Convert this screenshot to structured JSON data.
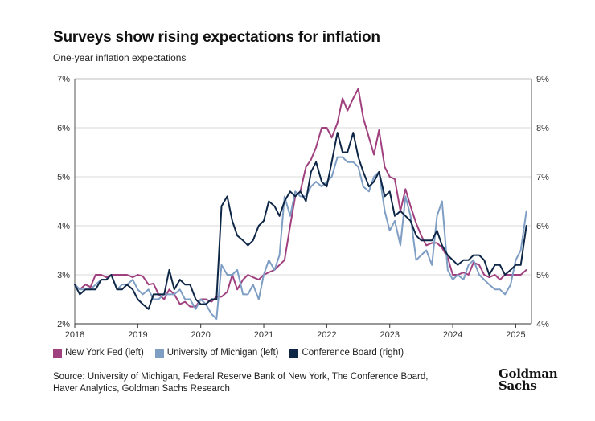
{
  "header": {
    "title": "Surveys show rising expectations for inflation",
    "subtitle": "One-year inflation expectations"
  },
  "legend": [
    {
      "label": "New York Fed (left)",
      "color": "#a0417f"
    },
    {
      "label": "University of Michigan (left)",
      "color": "#7f9ec4"
    },
    {
      "label": "Conference Board (right)",
      "color": "#0f2747"
    }
  ],
  "footer": {
    "source_line1": "Source: University of Michigan, Federal Reserve Bank of New York, The Conference Board,",
    "source_line2": "Haver Analytics, Goldman Sachs Research",
    "logo_line1": "Goldman",
    "logo_line2": "Sachs"
  },
  "chart_data": {
    "type": "line",
    "title": "Surveys show rising expectations for inflation",
    "subtitle": "One-year inflation expectations",
    "xlabel": "",
    "ylabel_left": "",
    "ylabel_right": "",
    "x_range": [
      2018.0,
      2025.25
    ],
    "x_ticks": [
      "2018",
      "2019",
      "2020",
      "2021",
      "2022",
      "2023",
      "2024",
      "2025"
    ],
    "ylim_left": [
      2,
      7
    ],
    "ylim_right": [
      4,
      9
    ],
    "y_ticks_left": [
      "2%",
      "3%",
      "4%",
      "5%",
      "6%",
      "7%"
    ],
    "y_ticks_right": [
      "4%",
      "5%",
      "6%",
      "7%",
      "8%",
      "9%"
    ],
    "grid": true,
    "series": [
      {
        "name": "New York Fed (left)",
        "axis": "left",
        "color": "#a0417f",
        "points": [
          [
            2018.0,
            2.8
          ],
          [
            2018.08,
            2.7
          ],
          [
            2018.17,
            2.8
          ],
          [
            2018.25,
            2.75
          ],
          [
            2018.33,
            3.0
          ],
          [
            2018.42,
            3.0
          ],
          [
            2018.5,
            2.95
          ],
          [
            2018.58,
            3.0
          ],
          [
            2018.67,
            3.0
          ],
          [
            2018.75,
            3.0
          ],
          [
            2018.83,
            3.0
          ],
          [
            2018.92,
            2.95
          ],
          [
            2019.0,
            3.0
          ],
          [
            2019.08,
            2.97
          ],
          [
            2019.17,
            2.8
          ],
          [
            2019.25,
            2.82
          ],
          [
            2019.33,
            2.6
          ],
          [
            2019.42,
            2.5
          ],
          [
            2019.5,
            2.7
          ],
          [
            2019.58,
            2.6
          ],
          [
            2019.67,
            2.4
          ],
          [
            2019.75,
            2.45
          ],
          [
            2019.83,
            2.35
          ],
          [
            2019.92,
            2.35
          ],
          [
            2020.0,
            2.5
          ],
          [
            2020.08,
            2.5
          ],
          [
            2020.17,
            2.45
          ],
          [
            2020.25,
            2.55
          ],
          [
            2020.33,
            2.55
          ],
          [
            2020.42,
            2.65
          ],
          [
            2020.5,
            3.0
          ],
          [
            2020.58,
            2.7
          ],
          [
            2020.67,
            2.9
          ],
          [
            2020.75,
            3.0
          ],
          [
            2020.83,
            2.95
          ],
          [
            2020.92,
            2.9
          ],
          [
            2021.0,
            3.0
          ],
          [
            2021.08,
            3.05
          ],
          [
            2021.17,
            3.1
          ],
          [
            2021.25,
            3.2
          ],
          [
            2021.33,
            3.3
          ],
          [
            2021.42,
            4.0
          ],
          [
            2021.5,
            4.6
          ],
          [
            2021.58,
            4.7
          ],
          [
            2021.67,
            5.2
          ],
          [
            2021.75,
            5.35
          ],
          [
            2021.83,
            5.6
          ],
          [
            2021.92,
            6.0
          ],
          [
            2022.0,
            6.0
          ],
          [
            2022.08,
            5.8
          ],
          [
            2022.17,
            6.1
          ],
          [
            2022.25,
            6.6
          ],
          [
            2022.33,
            6.35
          ],
          [
            2022.42,
            6.6
          ],
          [
            2022.5,
            6.8
          ],
          [
            2022.58,
            6.2
          ],
          [
            2022.67,
            5.8
          ],
          [
            2022.75,
            5.45
          ],
          [
            2022.83,
            5.95
          ],
          [
            2022.92,
            5.2
          ],
          [
            2023.0,
            5.0
          ],
          [
            2023.08,
            4.95
          ],
          [
            2023.17,
            4.3
          ],
          [
            2023.25,
            4.75
          ],
          [
            2023.33,
            4.4
          ],
          [
            2023.42,
            4.05
          ],
          [
            2023.5,
            3.8
          ],
          [
            2023.58,
            3.6
          ],
          [
            2023.67,
            3.65
          ],
          [
            2023.75,
            3.65
          ],
          [
            2023.83,
            3.55
          ],
          [
            2023.92,
            3.35
          ],
          [
            2024.0,
            3.0
          ],
          [
            2024.08,
            3.0
          ],
          [
            2024.17,
            3.05
          ],
          [
            2024.25,
            3.0
          ],
          [
            2024.33,
            3.25
          ],
          [
            2024.42,
            3.2
          ],
          [
            2024.5,
            3.0
          ],
          [
            2024.58,
            2.95
          ],
          [
            2024.67,
            3.0
          ],
          [
            2024.75,
            2.9
          ],
          [
            2024.83,
            3.0
          ],
          [
            2024.92,
            3.0
          ],
          [
            2025.0,
            3.0
          ],
          [
            2025.08,
            3.0
          ],
          [
            2025.17,
            3.1
          ]
        ]
      },
      {
        "name": "University of Michigan (left)",
        "axis": "left",
        "color": "#7f9ec4",
        "points": [
          [
            2018.0,
            2.8
          ],
          [
            2018.08,
            2.7
          ],
          [
            2018.17,
            2.7
          ],
          [
            2018.25,
            2.7
          ],
          [
            2018.33,
            2.8
          ],
          [
            2018.42,
            2.9
          ],
          [
            2018.5,
            2.9
          ],
          [
            2018.58,
            3.0
          ],
          [
            2018.67,
            2.7
          ],
          [
            2018.75,
            2.8
          ],
          [
            2018.83,
            2.8
          ],
          [
            2018.92,
            2.9
          ],
          [
            2019.0,
            2.7
          ],
          [
            2019.08,
            2.6
          ],
          [
            2019.17,
            2.7
          ],
          [
            2019.25,
            2.5
          ],
          [
            2019.33,
            2.5
          ],
          [
            2019.42,
            2.6
          ],
          [
            2019.5,
            2.6
          ],
          [
            2019.58,
            2.6
          ],
          [
            2019.67,
            2.7
          ],
          [
            2019.75,
            2.5
          ],
          [
            2019.83,
            2.5
          ],
          [
            2019.92,
            2.3
          ],
          [
            2020.0,
            2.5
          ],
          [
            2020.08,
            2.4
          ],
          [
            2020.17,
            2.2
          ],
          [
            2020.25,
            2.1
          ],
          [
            2020.33,
            3.2
          ],
          [
            2020.42,
            3.0
          ],
          [
            2020.5,
            3.0
          ],
          [
            2020.58,
            3.1
          ],
          [
            2020.67,
            2.6
          ],
          [
            2020.75,
            2.6
          ],
          [
            2020.83,
            2.8
          ],
          [
            2020.92,
            2.5
          ],
          [
            2021.0,
            3.0
          ],
          [
            2021.08,
            3.3
          ],
          [
            2021.17,
            3.1
          ],
          [
            2021.25,
            3.4
          ],
          [
            2021.33,
            4.6
          ],
          [
            2021.42,
            4.2
          ],
          [
            2021.5,
            4.7
          ],
          [
            2021.58,
            4.6
          ],
          [
            2021.67,
            4.6
          ],
          [
            2021.75,
            4.8
          ],
          [
            2021.83,
            4.9
          ],
          [
            2021.92,
            4.8
          ],
          [
            2022.0,
            4.9
          ],
          [
            2022.08,
            5.0
          ],
          [
            2022.17,
            5.4
          ],
          [
            2022.25,
            5.4
          ],
          [
            2022.33,
            5.3
          ],
          [
            2022.42,
            5.3
          ],
          [
            2022.5,
            5.2
          ],
          [
            2022.58,
            4.8
          ],
          [
            2022.67,
            4.7
          ],
          [
            2022.75,
            5.0
          ],
          [
            2022.83,
            5.1
          ],
          [
            2022.92,
            4.3
          ],
          [
            2023.0,
            3.9
          ],
          [
            2023.08,
            4.1
          ],
          [
            2023.17,
            3.6
          ],
          [
            2023.25,
            4.6
          ],
          [
            2023.33,
            4.2
          ],
          [
            2023.42,
            3.3
          ],
          [
            2023.5,
            3.4
          ],
          [
            2023.58,
            3.5
          ],
          [
            2023.67,
            3.2
          ],
          [
            2023.75,
            4.2
          ],
          [
            2023.83,
            4.5
          ],
          [
            2023.92,
            3.1
          ],
          [
            2024.0,
            2.9
          ],
          [
            2024.08,
            3.0
          ],
          [
            2024.17,
            2.9
          ],
          [
            2024.25,
            3.2
          ],
          [
            2024.33,
            3.3
          ],
          [
            2024.42,
            3.0
          ],
          [
            2024.5,
            2.9
          ],
          [
            2024.58,
            2.8
          ],
          [
            2024.67,
            2.7
          ],
          [
            2024.75,
            2.7
          ],
          [
            2024.83,
            2.6
          ],
          [
            2024.92,
            2.8
          ],
          [
            2025.0,
            3.3
          ],
          [
            2025.08,
            3.5
          ],
          [
            2025.17,
            4.3
          ]
        ]
      },
      {
        "name": "Conference Board (right)",
        "axis": "right",
        "color": "#0f2747",
        "points": [
          [
            2018.0,
            4.8
          ],
          [
            2018.08,
            4.6
          ],
          [
            2018.17,
            4.7
          ],
          [
            2018.25,
            4.7
          ],
          [
            2018.33,
            4.7
          ],
          [
            2018.42,
            4.9
          ],
          [
            2018.5,
            4.9
          ],
          [
            2018.58,
            5.0
          ],
          [
            2018.67,
            4.7
          ],
          [
            2018.75,
            4.7
          ],
          [
            2018.83,
            4.8
          ],
          [
            2018.92,
            4.7
          ],
          [
            2019.0,
            4.5
          ],
          [
            2019.08,
            4.4
          ],
          [
            2019.17,
            4.3
          ],
          [
            2019.25,
            4.6
          ],
          [
            2019.33,
            4.6
          ],
          [
            2019.42,
            4.6
          ],
          [
            2019.5,
            5.1
          ],
          [
            2019.58,
            4.7
          ],
          [
            2019.67,
            4.9
          ],
          [
            2019.75,
            4.8
          ],
          [
            2019.83,
            4.8
          ],
          [
            2019.92,
            4.5
          ],
          [
            2020.0,
            4.4
          ],
          [
            2020.08,
            4.4
          ],
          [
            2020.17,
            4.5
          ],
          [
            2020.25,
            4.5
          ],
          [
            2020.33,
            6.4
          ],
          [
            2020.42,
            6.6
          ],
          [
            2020.5,
            6.1
          ],
          [
            2020.58,
            5.8
          ],
          [
            2020.67,
            5.7
          ],
          [
            2020.75,
            5.6
          ],
          [
            2020.83,
            5.7
          ],
          [
            2020.92,
            6.0
          ],
          [
            2021.0,
            6.1
          ],
          [
            2021.08,
            6.5
          ],
          [
            2021.17,
            6.4
          ],
          [
            2021.25,
            6.2
          ],
          [
            2021.33,
            6.5
          ],
          [
            2021.42,
            6.7
          ],
          [
            2021.5,
            6.6
          ],
          [
            2021.58,
            6.7
          ],
          [
            2021.67,
            6.5
          ],
          [
            2021.75,
            7.1
          ],
          [
            2021.83,
            7.3
          ],
          [
            2021.92,
            6.9
          ],
          [
            2022.0,
            6.8
          ],
          [
            2022.08,
            7.3
          ],
          [
            2022.17,
            7.9
          ],
          [
            2022.25,
            7.5
          ],
          [
            2022.33,
            7.5
          ],
          [
            2022.42,
            7.9
          ],
          [
            2022.5,
            7.4
          ],
          [
            2022.58,
            7.1
          ],
          [
            2022.67,
            6.8
          ],
          [
            2022.75,
            6.9
          ],
          [
            2022.83,
            7.1
          ],
          [
            2022.92,
            6.6
          ],
          [
            2023.0,
            6.7
          ],
          [
            2023.08,
            6.2
          ],
          [
            2023.17,
            6.3
          ],
          [
            2023.25,
            6.2
          ],
          [
            2023.33,
            6.1
          ],
          [
            2023.42,
            5.8
          ],
          [
            2023.5,
            5.7
          ],
          [
            2023.58,
            5.7
          ],
          [
            2023.67,
            5.7
          ],
          [
            2023.75,
            5.9
          ],
          [
            2023.83,
            5.6
          ],
          [
            2023.92,
            5.4
          ],
          [
            2024.0,
            5.3
          ],
          [
            2024.08,
            5.2
          ],
          [
            2024.17,
            5.3
          ],
          [
            2024.25,
            5.3
          ],
          [
            2024.33,
            5.4
          ],
          [
            2024.42,
            5.4
          ],
          [
            2024.5,
            5.3
          ],
          [
            2024.58,
            5.0
          ],
          [
            2024.67,
            5.2
          ],
          [
            2024.75,
            5.2
          ],
          [
            2024.83,
            5.0
          ],
          [
            2024.92,
            5.1
          ],
          [
            2025.0,
            5.2
          ],
          [
            2025.08,
            5.2
          ],
          [
            2025.17,
            6.0
          ]
        ]
      }
    ]
  }
}
